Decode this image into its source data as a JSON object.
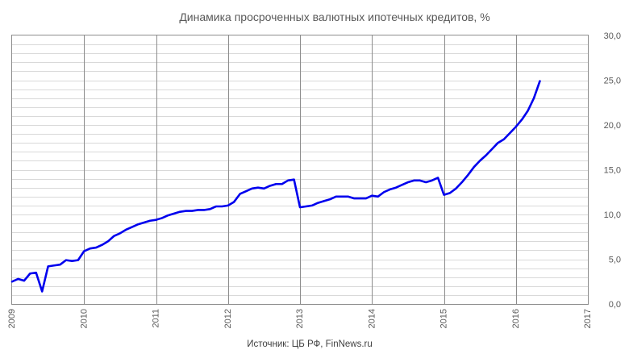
{
  "chart_data": {
    "type": "line",
    "title": "Динамика просроченных валютных ипотечных кредитов, %",
    "source": "Источник: ЦБ РФ, FinNews.ru",
    "x_tick_labels": [
      "2009",
      "2010",
      "2011",
      "2012",
      "2013",
      "2014",
      "2015",
      "2016",
      "2017"
    ],
    "y_tick_labels": [
      "0,0",
      "5,0",
      "10,0",
      "15,0",
      "20,0",
      "25,0",
      "30,0"
    ],
    "xlim": [
      2009,
      2017
    ],
    "ylim": [
      0,
      30
    ],
    "y_minor_step": 1,
    "y_label_side": "right",
    "grid": true,
    "series_color": "#0000ee",
    "x": [
      2009.0,
      2009.083,
      2009.167,
      2009.25,
      2009.333,
      2009.417,
      2009.5,
      2009.583,
      2009.667,
      2009.75,
      2009.833,
      2009.917,
      2010.0,
      2010.083,
      2010.167,
      2010.25,
      2010.333,
      2010.417,
      2010.5,
      2010.583,
      2010.667,
      2010.75,
      2010.833,
      2010.917,
      2011.0,
      2011.083,
      2011.167,
      2011.25,
      2011.333,
      2011.417,
      2011.5,
      2011.583,
      2011.667,
      2011.75,
      2011.833,
      2011.917,
      2012.0,
      2012.083,
      2012.167,
      2012.25,
      2012.333,
      2012.417,
      2012.5,
      2012.583,
      2012.667,
      2012.75,
      2012.833,
      2012.917,
      2013.0,
      2013.083,
      2013.167,
      2013.25,
      2013.333,
      2013.417,
      2013.5,
      2013.583,
      2013.667,
      2013.75,
      2013.833,
      2013.917,
      2014.0,
      2014.083,
      2014.167,
      2014.25,
      2014.333,
      2014.417,
      2014.5,
      2014.583,
      2014.667,
      2014.75,
      2014.833,
      2014.917,
      2015.0,
      2015.083,
      2015.167,
      2015.25,
      2015.333,
      2015.417,
      2015.5,
      2015.583,
      2015.667,
      2015.75,
      2015.833,
      2015.917,
      2016.0,
      2016.083,
      2016.167,
      2016.25,
      2016.333
    ],
    "values": [
      2.5,
      2.8,
      2.6,
      3.4,
      3.5,
      1.4,
      4.2,
      4.3,
      4.4,
      4.9,
      4.8,
      4.9,
      5.9,
      6.2,
      6.3,
      6.6,
      7.0,
      7.6,
      7.9,
      8.3,
      8.6,
      8.9,
      9.1,
      9.3,
      9.4,
      9.6,
      9.9,
      10.1,
      10.3,
      10.4,
      10.4,
      10.5,
      10.5,
      10.6,
      10.9,
      10.9,
      11.0,
      11.4,
      12.3,
      12.6,
      12.9,
      13.0,
      12.9,
      13.2,
      13.4,
      13.4,
      13.8,
      13.9,
      10.8,
      10.9,
      11.0,
      11.3,
      11.5,
      11.7,
      12.0,
      12.0,
      12.0,
      11.8,
      11.8,
      11.8,
      12.1,
      12.0,
      12.5,
      12.8,
      13.0,
      13.3,
      13.6,
      13.8,
      13.8,
      13.6,
      13.8,
      14.1,
      12.2,
      12.4,
      12.9,
      13.6,
      14.4,
      15.3,
      16.0,
      16.6,
      17.3,
      18.0,
      18.4,
      19.1,
      19.8,
      20.6,
      21.6,
      23.0,
      24.9
    ]
  }
}
